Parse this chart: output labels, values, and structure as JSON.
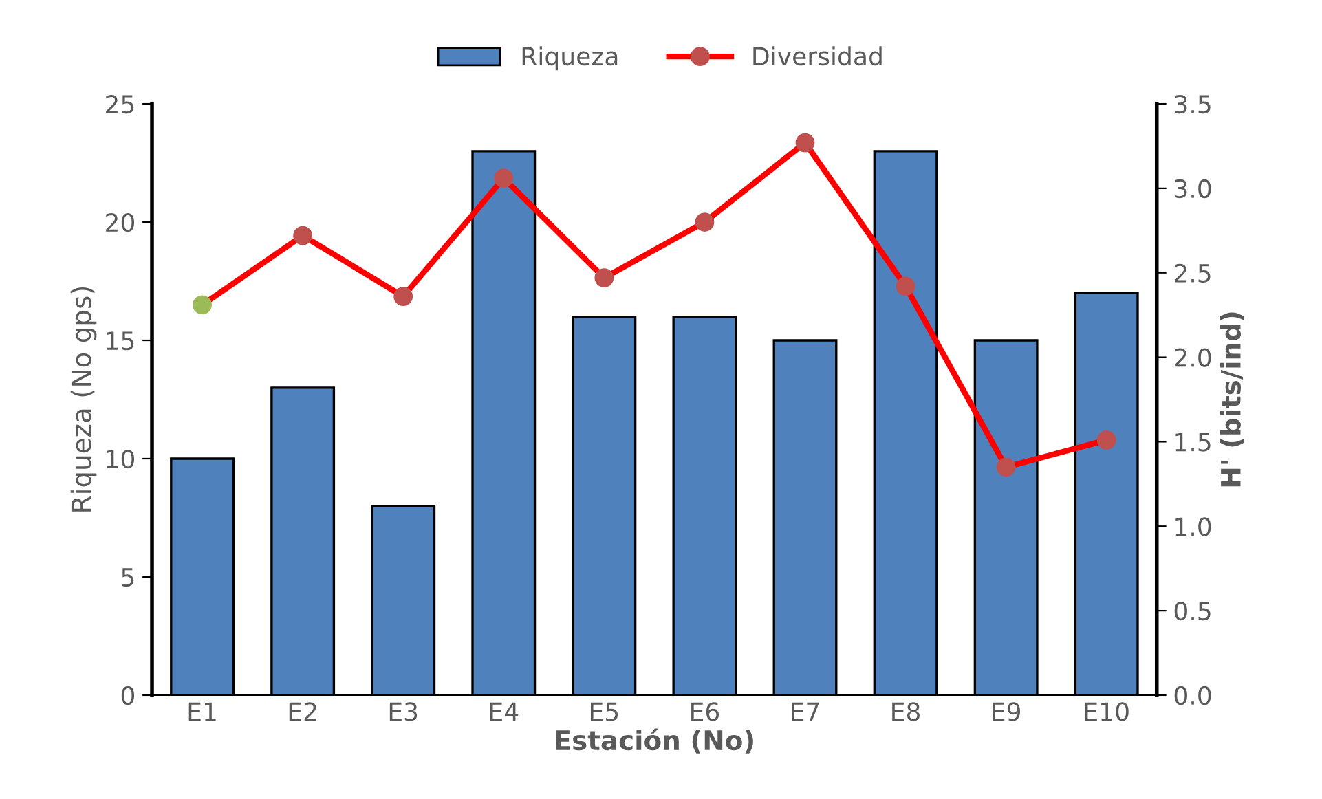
{
  "chart_data": {
    "type": "bar",
    "xlabel": "Estación (No)",
    "ylabel": "Riqueza (No gps)",
    "y2label": "H' (bits/ind)",
    "categories": [
      "E1",
      "E2",
      "E3",
      "E4",
      "E5",
      "E6",
      "E7",
      "E8",
      "E9",
      "E10"
    ],
    "series": [
      {
        "name": "Riqueza",
        "color": "#4f81bd",
        "values": [
          10,
          13,
          8,
          23,
          16,
          16,
          15,
          23,
          15,
          17
        ]
      },
      {
        "name": "Diversidad",
        "type": "line",
        "axis": "y2",
        "color": "#ff0000",
        "marker": "circle",
        "colors": [
          "#9bbb59",
          "#c0504d",
          "#c0504d",
          "#c0504d",
          "#c0504d",
          "#c0504d",
          "#c0504d",
          "#c0504d",
          "#c0504d",
          "#c0504d"
        ],
        "values": [
          2.31,
          2.72,
          2.36,
          3.06,
          2.47,
          2.8,
          3.27,
          2.42,
          1.35,
          1.51
        ]
      }
    ],
    "ylim": [
      0,
      25
    ],
    "yticks": [
      0,
      5,
      10,
      15,
      20,
      25
    ],
    "y2lim": [
      0,
      3.5
    ],
    "y2ticks": [
      {
        "value": 0,
        "label": "0.0"
      },
      {
        "value": 0.5,
        "label": "0.5"
      },
      {
        "value": 1,
        "label": "1.0"
      },
      {
        "value": 1.5,
        "label": "1.5"
      },
      {
        "value": 2,
        "label": "2.0"
      },
      {
        "value": 2.5,
        "label": "2.5"
      },
      {
        "value": 3,
        "label": "3.0"
      },
      {
        "value": 3.5,
        "label": "3.5"
      }
    ],
    "legend": "top",
    "grid": false
  }
}
